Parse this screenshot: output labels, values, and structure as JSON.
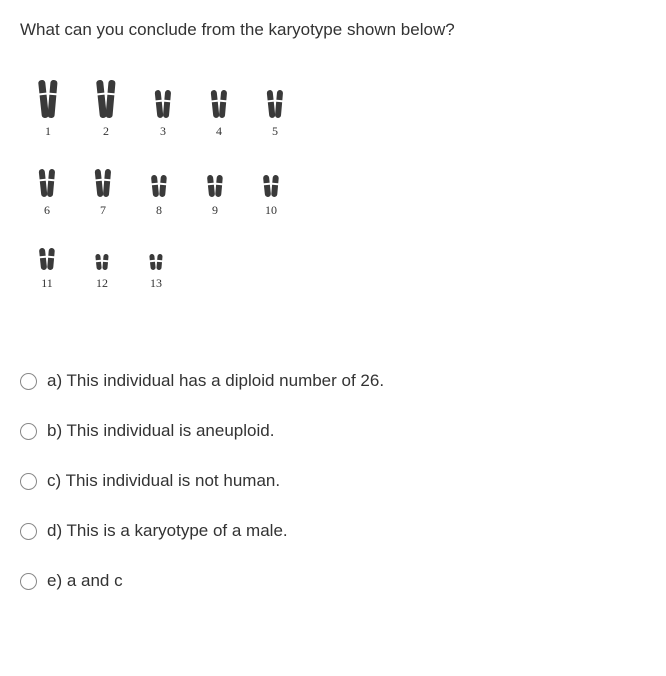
{
  "question": "What can you conclude from the karyotype shown below?",
  "karyotype": {
    "rows": [
      {
        "groups": [
          {
            "label": "1",
            "size": "c-lg",
            "count": 2
          },
          {
            "label": "2",
            "size": "c-lg",
            "count": 2
          },
          {
            "label": "3",
            "size": "c-md",
            "count": 2
          },
          {
            "label": "4",
            "size": "c-md",
            "count": 2
          },
          {
            "label": "5",
            "size": "c-md",
            "count": 2
          }
        ]
      },
      {
        "groups": [
          {
            "label": "6",
            "size": "c-md",
            "count": 2
          },
          {
            "label": "7",
            "size": "c-md",
            "count": 2
          },
          {
            "label": "8",
            "size": "c-sm",
            "count": 2
          },
          {
            "label": "9",
            "size": "c-sm",
            "count": 2
          },
          {
            "label": "10",
            "size": "c-sm",
            "count": 2
          }
        ]
      },
      {
        "groups": [
          {
            "label": "11",
            "size": "c-sm",
            "count": 2
          },
          {
            "label": "12",
            "size": "c-xs",
            "count": 2
          },
          {
            "label": "13",
            "size": "c-xs",
            "count": 2
          }
        ]
      }
    ],
    "chrom_color": "#3a3a3a",
    "label_color": "#333333",
    "label_fontsize": 12
  },
  "options": [
    {
      "key": "a",
      "text": "a) This individual has a diploid number of 26."
    },
    {
      "key": "b",
      "text": "b) This individual is aneuploid."
    },
    {
      "key": "c",
      "text": "c) This individual is not human."
    },
    {
      "key": "d",
      "text": "d) This is a karyotype of a male."
    },
    {
      "key": "e",
      "text": "e) a and c"
    }
  ],
  "colors": {
    "background": "#ffffff",
    "text": "#333333",
    "radio_border": "#888888"
  }
}
